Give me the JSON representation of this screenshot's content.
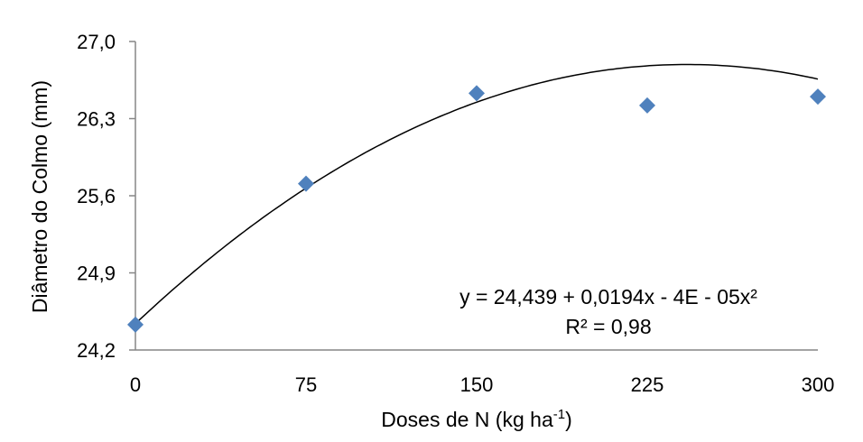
{
  "chart_data": {
    "type": "scatter",
    "xlabel_main": "Doses de N (kg ha",
    "xlabel_sup": "-1",
    "xlabel_end": ")",
    "ylabel": "Diâmetro do Colmo (mm)",
    "x_ticks": [
      0,
      75,
      150,
      225,
      300
    ],
    "x_tick_labels": [
      "0",
      "75",
      "150",
      "225",
      "300"
    ],
    "y_ticks": [
      24.2,
      24.9,
      25.6,
      26.3,
      27.0
    ],
    "y_tick_labels": [
      "24,2",
      "24,9",
      "25,6",
      "26,3",
      "27,0"
    ],
    "xlim": [
      0,
      300
    ],
    "ylim": [
      24.2,
      27.0
    ],
    "grid": false,
    "points": [
      {
        "x": 0,
        "y": 24.43
      },
      {
        "x": 75,
        "y": 25.71
      },
      {
        "x": 150,
        "y": 26.53
      },
      {
        "x": 225,
        "y": 26.42
      },
      {
        "x": 300,
        "y": 26.5
      }
    ],
    "marker_color": "#4F81BD",
    "trendline": {
      "type": "polynomial",
      "coefficients": [
        24.439,
        0.0194,
        -4e-05
      ],
      "equation": "y = 24,439 + 0,0194x  - 4E - 05x²",
      "r2": "R² = 0,98"
    }
  }
}
